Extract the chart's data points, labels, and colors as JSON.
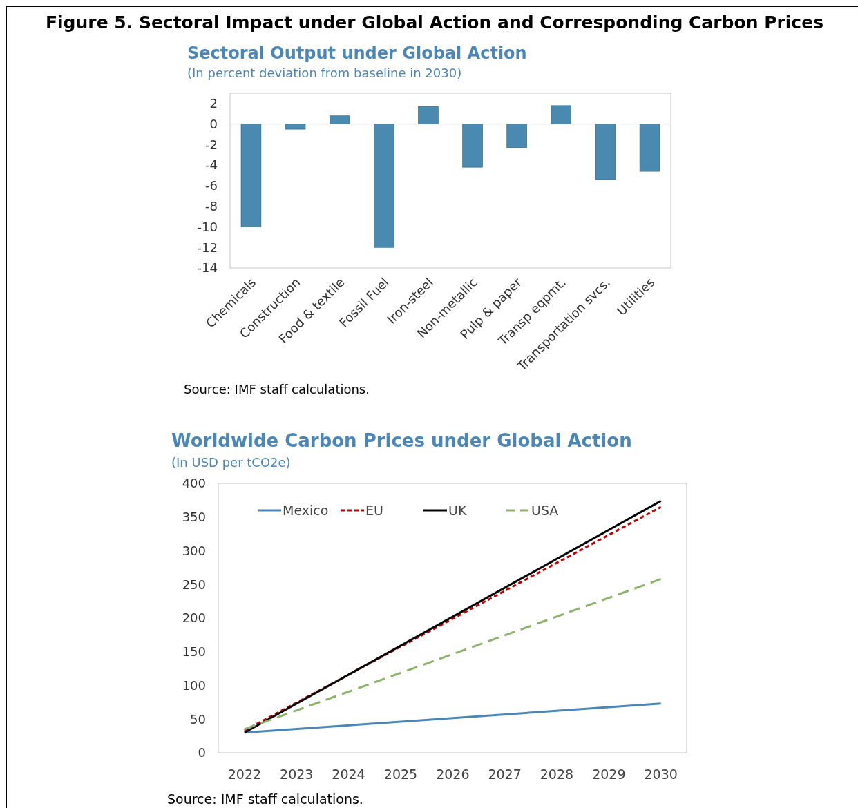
{
  "chart_data": [
    {
      "type": "bar",
      "title": "Sectoral Output under Global Action",
      "subtitle": "(In percent deviation from baseline in 2030)",
      "annotations": [
        "Figure 5. Sectoral Impact under Global Action and Corresponding Carbon Prices",
        "Source: IMF staff calculations."
      ],
      "categories": [
        "Chemicals",
        "Construction",
        "Food & textile",
        "Fossil Fuel",
        "Iron-steel",
        "Non-metallic",
        "Pulp & paper",
        "Transp eqpmt.",
        "Transportation svcs.",
        "Utilities"
      ],
      "values": [
        -10,
        -0.5,
        0.8,
        -12,
        1.7,
        -4.2,
        -2.3,
        1.8,
        -5.4,
        -4.6
      ],
      "color": "#4a8ab0",
      "ylim": [
        -14,
        3
      ],
      "yticks": [
        -14,
        -12,
        -10,
        -8,
        -6,
        -4,
        -2,
        0,
        2
      ],
      "legend": false
    },
    {
      "type": "line",
      "title": "Worldwide Carbon Prices under Global Action",
      "subtitle": "(In USD per tCO2e)",
      "annotations": [
        "Source: IMF staff calculations."
      ],
      "x": [
        "2022",
        "2030"
      ],
      "xlim": [
        "2021-07",
        "2030-07"
      ],
      "xticks": [
        {
          "value": "2022",
          "label": "2022"
        },
        {
          "value": "2023",
          "label": "2023"
        },
        {
          "value": "2024",
          "label": "2024"
        },
        {
          "value": "2025",
          "label": "2025"
        },
        {
          "value": "2026",
          "label": "2026"
        },
        {
          "value": "2027",
          "label": "2027"
        },
        {
          "value": "2028",
          "label": "2028"
        },
        {
          "value": "2029",
          "label": "2029"
        },
        {
          "value": "2030",
          "label": "2030"
        }
      ],
      "ylim": [
        0,
        400
      ],
      "yticks": [
        0,
        50,
        100,
        150,
        200,
        250,
        300,
        350,
        400
      ],
      "legend": "top left",
      "series": [
        {
          "name": "Mexico",
          "color": "#4a86b8",
          "line_style": "solid",
          "values": [
            30,
            73
          ]
        },
        {
          "name": "EU",
          "color": "#c00000",
          "line_style": "dashed",
          "values": [
            33,
            365
          ]
        },
        {
          "name": "UK",
          "color": "#000000",
          "line_style": "solid",
          "values": [
            30,
            374
          ]
        },
        {
          "name": "USA",
          "color": "#8db36a",
          "line_style": "dashed",
          "values": [
            35,
            258
          ]
        }
      ]
    }
  ]
}
